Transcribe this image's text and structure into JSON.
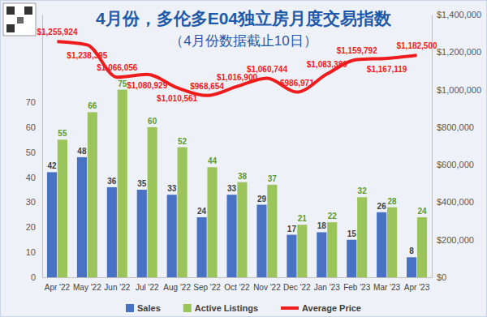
{
  "chart_data": {
    "type": "bar",
    "title": "4月份，多伦多E04独立房月度交易指数",
    "subtitle": "（4月份数据截止10日）",
    "categories": [
      "Apr '22",
      "May '22",
      "Jun '22",
      "Jul '22",
      "Aug '22",
      "Sep '22",
      "Oct '22",
      "Nov '22",
      "Dec '22",
      "Jan '23",
      "Feb '23",
      "Mar '23",
      "Apr '23"
    ],
    "series": [
      {
        "name": "Sales",
        "type": "bar",
        "color": "#4a72c4",
        "values": [
          42,
          48,
          36,
          35,
          33,
          24,
          33,
          29,
          17,
          18,
          15,
          26,
          8
        ]
      },
      {
        "name": "Active Listings",
        "type": "bar",
        "color": "#9bc55a",
        "values": [
          55,
          66,
          75,
          60,
          52,
          44,
          38,
          37,
          21,
          22,
          32,
          28,
          24
        ]
      },
      {
        "name": "Average Price",
        "type": "line",
        "axis": "y2",
        "color": "#ee1c1c",
        "line_style": "solid",
        "values": [
          1255924,
          1238395,
          1066056,
          1080929,
          1010561,
          968654,
          1016900,
          1060744,
          986971,
          1083389,
          1159792,
          1167119,
          1182500
        ],
        "value_labels": [
          "$1,255,924",
          "$1,238,395",
          "$1,066,056",
          "$1,080,929",
          "$1,010,561",
          "$968,654",
          "$1,016,900",
          "$1,060,744",
          "$986,971",
          "$1,083,389",
          "$1,159,792",
          "$1,167,119",
          "$1,182,500"
        ]
      }
    ],
    "ylim": [
      0,
      105
    ],
    "yticks": [
      0,
      10,
      20,
      30,
      40,
      50,
      60,
      70
    ],
    "y2lim": [
      0,
      1400000
    ],
    "y2ticks": [
      {
        "value": 0,
        "label": "$0"
      },
      {
        "value": 200000,
        "label": "$200,000"
      },
      {
        "value": 400000,
        "label": "$400,000"
      },
      {
        "value": 600000,
        "label": "$600,000"
      },
      {
        "value": 800000,
        "label": "$800,000"
      },
      {
        "value": 1000000,
        "label": "$1,000,000"
      },
      {
        "value": 1200000,
        "label": "$1,200,000"
      },
      {
        "value": 1400000,
        "label": "$1,400,000"
      }
    ],
    "data_labels": true,
    "legend": "bottom",
    "grid": false
  }
}
